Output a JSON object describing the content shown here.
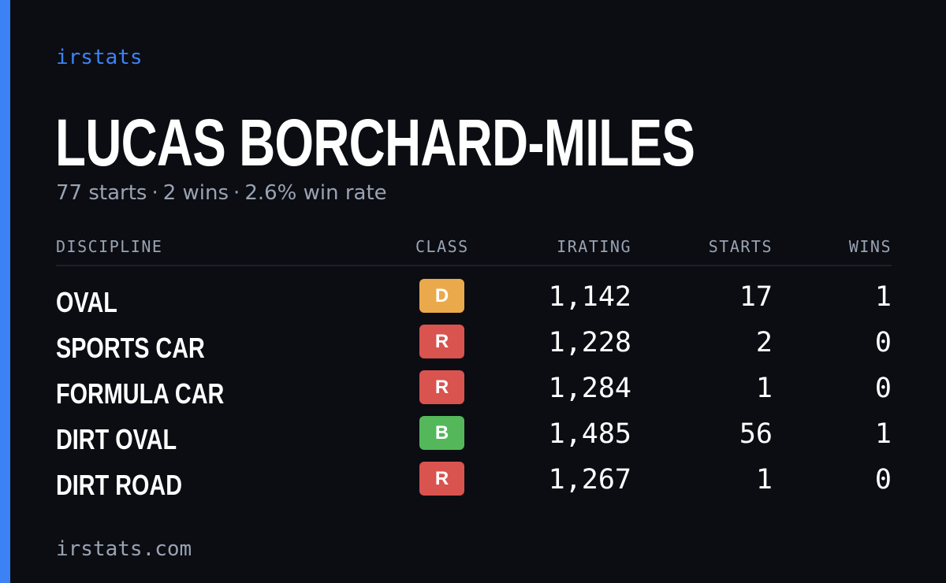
{
  "brand": "irstats",
  "player": {
    "name": "LUCAS BORCHARD-MILES"
  },
  "summary": {
    "starts": "77 starts",
    "wins": "2 wins",
    "win_rate": "2.6% win rate",
    "separator": "·"
  },
  "table": {
    "headers": {
      "discipline": "DISCIPLINE",
      "class": "CLASS",
      "irating": "IRATING",
      "starts": "STARTS",
      "wins": "WINS"
    },
    "rows": [
      {
        "discipline": "OVAL",
        "class": "D",
        "class_color": "#eaa94a",
        "irating": "1,142",
        "starts": "17",
        "wins": "1"
      },
      {
        "discipline": "SPORTS CAR",
        "class": "R",
        "class_color": "#d9534f",
        "irating": "1,228",
        "starts": "2",
        "wins": "0"
      },
      {
        "discipline": "FORMULA CAR",
        "class": "R",
        "class_color": "#d9534f",
        "irating": "1,284",
        "starts": "1",
        "wins": "0"
      },
      {
        "discipline": "DIRT OVAL",
        "class": "B",
        "class_color": "#54b85a",
        "irating": "1,485",
        "starts": "56",
        "wins": "1"
      },
      {
        "discipline": "DIRT ROAD",
        "class": "R",
        "class_color": "#d9534f",
        "irating": "1,267",
        "starts": "1",
        "wins": "0"
      }
    ]
  },
  "footer": "irstats.com",
  "colors": {
    "background": "#0b0d13",
    "accent": "#3d82f5",
    "muted_text": "#9aa3b2",
    "primary_text": "#ffffff"
  }
}
